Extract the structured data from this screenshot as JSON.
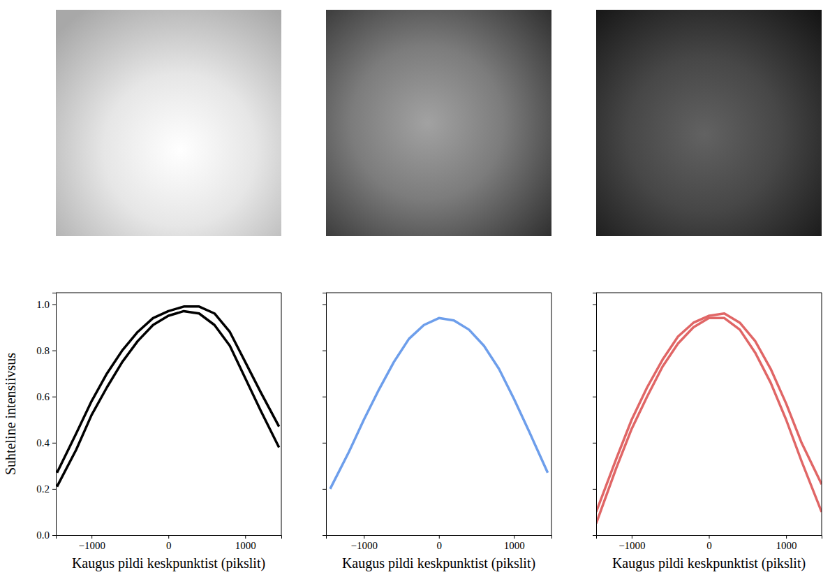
{
  "chart_data": [
    {
      "type": "line",
      "x_label": "Kaugus pildi keskpunktist (pikslit)",
      "y_label": "Suhteline intensiivsus",
      "x": [
        -1450,
        -1200,
        -1000,
        -800,
        -600,
        -400,
        -200,
        0,
        200,
        400,
        600,
        800,
        1000,
        1200,
        1440
      ],
      "series": [
        {
          "color": "#000000",
          "values": [
            0.27,
            0.44,
            0.58,
            0.7,
            0.8,
            0.88,
            0.94,
            0.97,
            0.99,
            0.99,
            0.96,
            0.88,
            0.75,
            0.62,
            0.47
          ]
        },
        {
          "color": "#000000",
          "values": [
            0.21,
            0.37,
            0.52,
            0.64,
            0.75,
            0.84,
            0.91,
            0.95,
            0.97,
            0.96,
            0.91,
            0.82,
            0.68,
            0.54,
            0.38
          ]
        }
      ],
      "xlim": [
        -1465,
        1470
      ],
      "ylim": [
        0,
        1.05
      ],
      "xticks": [
        {
          "value": -1000,
          "label": "−1000"
        },
        0,
        1000
      ],
      "yticks": [
        {
          "value": 0,
          "label": "0.0"
        },
        {
          "value": 0.2,
          "label": "0.2"
        },
        {
          "value": 0.4,
          "label": "0.4"
        },
        {
          "value": 0.6,
          "label": "0.6"
        },
        {
          "value": 0.8,
          "label": "0.8"
        },
        {
          "value": 1.0,
          "label": "1.0"
        }
      ]
    },
    {
      "type": "line",
      "x_label": "Kaugus pildi keskpunktist (pikslit)",
      "x": [
        -1450,
        -1200,
        -1000,
        -800,
        -600,
        -400,
        -200,
        0,
        200,
        400,
        600,
        800,
        1000,
        1200,
        1450
      ],
      "series": [
        {
          "color": "#6d9eeb",
          "values": [
            0.2,
            0.36,
            0.5,
            0.63,
            0.75,
            0.85,
            0.91,
            0.94,
            0.93,
            0.89,
            0.82,
            0.72,
            0.59,
            0.45,
            0.27
          ]
        }
      ],
      "xlim": [
        -1505,
        1500
      ],
      "ylim": [
        0,
        1.05
      ],
      "xticks": [
        {
          "value": -1000,
          "label": "−1000"
        },
        0,
        1000
      ],
      "yticks": [
        0,
        0.2,
        0.4,
        0.6,
        0.8,
        1.0
      ],
      "tick_labels": "x"
    },
    {
      "type": "line",
      "x_label": "Kaugus pildi keskpunktist (pikslit)",
      "x": [
        -1460,
        -1200,
        -1000,
        -800,
        -600,
        -400,
        -200,
        0,
        200,
        400,
        600,
        800,
        1000,
        1200,
        1460
      ],
      "series": [
        {
          "color": "#e06666",
          "values": [
            0.1,
            0.33,
            0.5,
            0.64,
            0.76,
            0.86,
            0.92,
            0.95,
            0.96,
            0.92,
            0.84,
            0.72,
            0.57,
            0.4,
            0.22
          ]
        },
        {
          "color": "#e06666",
          "values": [
            0.05,
            0.29,
            0.46,
            0.6,
            0.73,
            0.83,
            0.9,
            0.94,
            0.94,
            0.89,
            0.79,
            0.66,
            0.5,
            0.32,
            0.1
          ]
        }
      ],
      "xlim": [
        -1460,
        1460
      ],
      "ylim": [
        0,
        1.05
      ],
      "xticks": [
        {
          "value": -1000,
          "label": "−1000"
        },
        0,
        1000
      ],
      "yticks": [
        0,
        0.2,
        0.4,
        0.6,
        0.8,
        1.0
      ],
      "tick_labels": "x"
    }
  ]
}
